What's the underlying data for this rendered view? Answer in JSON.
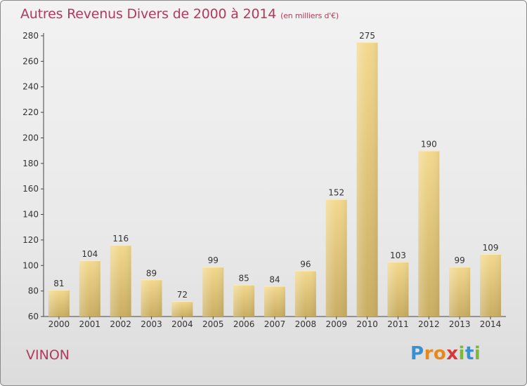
{
  "title": "Autres Revenus Divers de 2000 à 2014",
  "subtitle": "(en milliers d'€)",
  "city": "VINON",
  "brand": {
    "letters": [
      "P",
      "r",
      "o",
      "x",
      "i",
      "t",
      "i"
    ],
    "colors": [
      "#3a8fd1",
      "#e5891e",
      "#e5891e",
      "#d33a3a",
      "#7db83a",
      "#3a8fd1",
      "#7db83a"
    ]
  },
  "colors": {
    "bar_fill_top": "#f3d98e",
    "bar_fill_bottom": "#c9ad62",
    "title": "#b23a5c"
  },
  "chart_data": {
    "type": "bar",
    "categories": [
      "2000",
      "2001",
      "2002",
      "2003",
      "2004",
      "2005",
      "2006",
      "2007",
      "2008",
      "2009",
      "2010",
      "2011",
      "2012",
      "2013",
      "2014"
    ],
    "values": [
      81,
      104,
      116,
      89,
      72,
      99,
      85,
      84,
      96,
      152,
      275,
      103,
      190,
      99,
      109
    ],
    "ylim": [
      60,
      280
    ],
    "yticks": [
      60,
      80,
      100,
      120,
      140,
      160,
      180,
      200,
      220,
      240,
      260,
      280
    ],
    "grid": false,
    "legend": "none"
  }
}
